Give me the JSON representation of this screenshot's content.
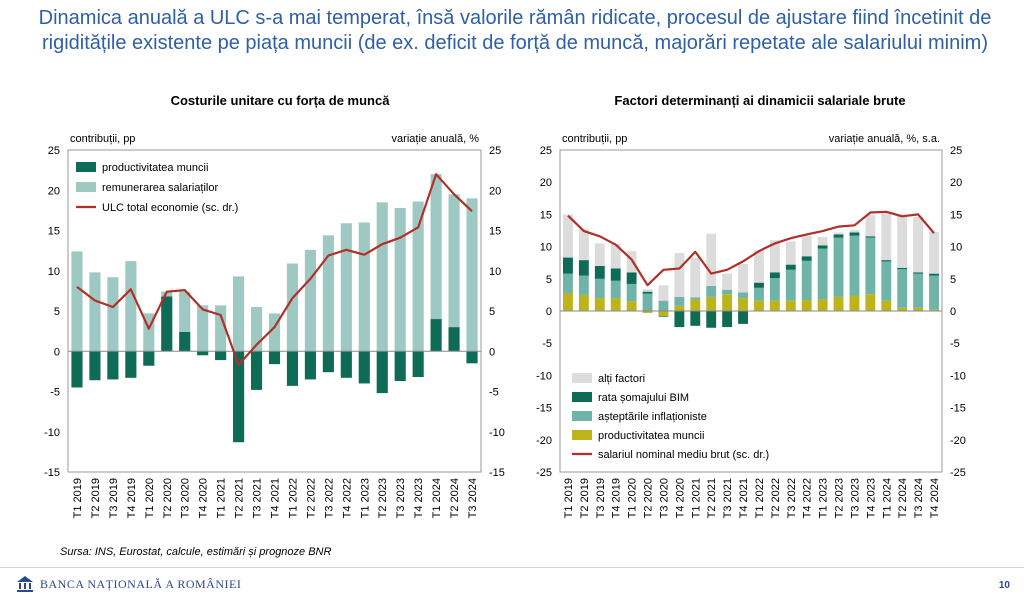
{
  "headline": "Dinamica anuală a ULC s-a mai temperat, însă valorile rămân ridicate, procesul de ajustare fiind încetinit de rigiditățile existente pe piața muncii (de ex. deficit de forță de muncă, majorări repetate ale salariului minim)",
  "source": "Sursa: INS, Eurostat, calcule, estimări și prognoze BNR",
  "footer": {
    "bank_name": "BANCA NAȚIONALĂ A ROMÂNIEI",
    "page_number": "10"
  },
  "colors": {
    "headline": "#2e5fa8",
    "dark_green": "#0d6b56",
    "light_teal": "#9ec9c3",
    "mid_teal": "#6fb3a9",
    "olive": "#bcb41a",
    "grey": "#dcdcdc",
    "line_red": "#b03028"
  },
  "chart_data": [
    {
      "type": "bar",
      "title": "Costurile unitare cu forța de muncă",
      "left_axis_label": "contribuții, pp",
      "right_axis_label": "variație anuală, %",
      "ylim": [
        -15,
        25
      ],
      "yticks": [
        -15,
        -10,
        -5,
        0,
        5,
        10,
        15,
        20,
        25
      ],
      "categories": [
        "T1 2019",
        "T2 2019",
        "T3 2019",
        "T4 2019",
        "T1 2020",
        "T2 2020",
        "T3 2020",
        "T4 2020",
        "T1 2021",
        "T2 2021",
        "T3 2021",
        "T4 2021",
        "T1 2022",
        "T2 2022",
        "T3 2022",
        "T4 2022",
        "T1 2023",
        "T2 2023",
        "T3 2023",
        "T4 2023",
        "T1 2024",
        "T2 2024",
        "T3 2024"
      ],
      "legend": [
        "productivitatea muncii",
        "remunerarea salariaților",
        "ULC total economie (sc. dr.)"
      ],
      "series": [
        {
          "name": "productivitatea muncii",
          "kind": "bar",
          "color": "#0d6b56",
          "values": [
            -4.5,
            -3.6,
            -3.5,
            -3.3,
            -1.8,
            6.8,
            2.4,
            -0.5,
            -1.1,
            -11.3,
            -4.8,
            -1.6,
            -4.3,
            -3.5,
            -2.6,
            -3.3,
            -4.0,
            -5.2,
            -3.7,
            -3.2,
            4.0,
            3.0,
            -1.5
          ]
        },
        {
          "name": "remunerarea salariaților",
          "kind": "bar",
          "color": "#9ec9c3",
          "values": [
            12.4,
            9.8,
            9.2,
            11.2,
            4.7,
            0.6,
            5.0,
            5.7,
            5.7,
            9.3,
            5.5,
            4.7,
            10.9,
            12.6,
            14.4,
            15.9,
            16.0,
            18.5,
            17.8,
            18.6,
            18.0,
            16.5,
            19.0
          ]
        },
        {
          "name": "ULC total economie (sc. dr.)",
          "kind": "line",
          "color": "#b03028",
          "values": [
            8.0,
            6.3,
            5.5,
            7.7,
            2.8,
            7.4,
            7.6,
            5.2,
            4.5,
            -1.7,
            0.8,
            3.0,
            6.6,
            9.0,
            11.9,
            12.6,
            12.0,
            13.3,
            14.1,
            15.4,
            22.0,
            19.5,
            17.4
          ]
        }
      ]
    },
    {
      "type": "bar",
      "title": "Factori determinanți ai dinamicii salariale brute",
      "left_axis_label": "contribuții, pp",
      "right_axis_label": "variație anuală, %, s.a.",
      "ylim": [
        -25,
        25
      ],
      "yticks": [
        -25,
        -20,
        -15,
        -10,
        -5,
        0,
        5,
        10,
        15,
        20,
        25
      ],
      "categories": [
        "T1 2019",
        "T2 2019",
        "T3 2019",
        "T4 2019",
        "T1 2020",
        "T2 2020",
        "T3 2020",
        "T4 2020",
        "T1 2021",
        "T2 2021",
        "T3 2021",
        "T4 2021",
        "T1 2022",
        "T2 2022",
        "T3 2022",
        "T4 2022",
        "T1 2023",
        "T2 2023",
        "T3 2023",
        "T4 2023",
        "T1 2024",
        "T2 2024",
        "T3 2024",
        "T4 2024"
      ],
      "legend": [
        "alți factori",
        "rata șomajului BIM",
        "așteptările inflaționiste",
        "productivitatea muncii",
        "salariul nominal mediu brut (sc. dr.)"
      ],
      "series": [
        {
          "name": "productivitatea muncii",
          "kind": "bar",
          "color": "#bcb41a",
          "values": [
            2.8,
            2.5,
            2.0,
            2.0,
            1.5,
            -0.3,
            -0.8,
            0.8,
            1.8,
            2.2,
            2.6,
            2.0,
            1.6,
            1.6,
            1.6,
            1.7,
            1.8,
            2.2,
            2.4,
            2.6,
            1.6,
            0.5,
            0.5,
            0.2
          ]
        },
        {
          "name": "așteptările inflaționiste",
          "kind": "bar",
          "color": "#6fb3a9",
          "values": [
            3.0,
            3.0,
            3.0,
            2.7,
            2.7,
            2.7,
            1.6,
            1.4,
            0.3,
            1.7,
            0.7,
            0.9,
            2.0,
            3.5,
            4.8,
            6.1,
            7.9,
            9.2,
            9.3,
            8.8,
            6.1,
            6.0,
            5.3,
            5.3
          ]
        },
        {
          "name": "rata șomajului BIM",
          "kind": "bar",
          "color": "#0d6b56",
          "values": [
            2.5,
            2.4,
            2.0,
            1.9,
            1.8,
            0.3,
            -0.1,
            -2.5,
            -2.3,
            -2.6,
            -2.5,
            -2.0,
            0.8,
            0.9,
            0.8,
            0.7,
            0.5,
            0.5,
            0.5,
            0.2,
            0.2,
            0.2,
            0.2,
            0.3
          ]
        },
        {
          "name": "alți factori",
          "kind": "bar",
          "color": "#dcdcdc",
          "values": [
            6.7,
            4.8,
            3.5,
            3.8,
            3.3,
            0.4,
            2.4,
            6.8,
            6.2,
            8.1,
            2.5,
            4.4,
            5.0,
            5.0,
            3.6,
            3.2,
            1.3,
            0.3,
            0.4,
            3.3,
            7.5,
            8.3,
            8.6,
            6.5
          ]
        },
        {
          "name": "salariul nominal mediu brut (sc. dr.)",
          "kind": "line",
          "color": "#b03028",
          "values": [
            14.8,
            12.4,
            11.6,
            10.3,
            8.0,
            4.0,
            6.4,
            6.6,
            9.2,
            5.8,
            6.4,
            7.7,
            9.3,
            10.5,
            11.3,
            11.9,
            12.4,
            13.1,
            13.3,
            15.3,
            15.4,
            14.7,
            15.0,
            12.1
          ]
        }
      ]
    }
  ]
}
